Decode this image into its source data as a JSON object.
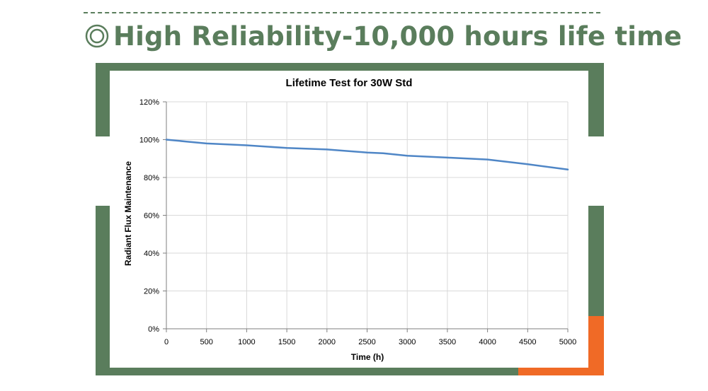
{
  "header": {
    "bullet_icon": "double-circle-icon",
    "title": "High Reliability-10,000 hours life time"
  },
  "colors": {
    "accent_green": "#5a7d5c",
    "accent_orange": "#f06a26",
    "series_line": "#4f86c6",
    "grid": "#d9d9d9"
  },
  "chart_data": {
    "type": "line",
    "title": "Lifetime Test for 30W Std",
    "xlabel": "Time (h)",
    "ylabel": "Radiant Flux Maintenance",
    "xlim": [
      0,
      5000
    ],
    "ylim": [
      0,
      120
    ],
    "x_ticks": [
      "0",
      "500",
      "1000",
      "1500",
      "2000",
      "2500",
      "3000",
      "3500",
      "4000",
      "4500",
      "5000"
    ],
    "y_ticks": [
      "0%",
      "20%",
      "40%",
      "60%",
      "80%",
      "100%",
      "120%"
    ],
    "grid": "vertical and horizontal",
    "series": [
      {
        "name": "30W Std",
        "x": [
          0,
          250,
          500,
          1000,
          1500,
          2000,
          2500,
          2700,
          3000,
          3500,
          4000,
          4500,
          5000
        ],
        "values": [
          100,
          99,
          98,
          97,
          95.6,
          94.8,
          93.2,
          92.8,
          91.5,
          90.5,
          89.5,
          87,
          84.2
        ]
      }
    ]
  }
}
